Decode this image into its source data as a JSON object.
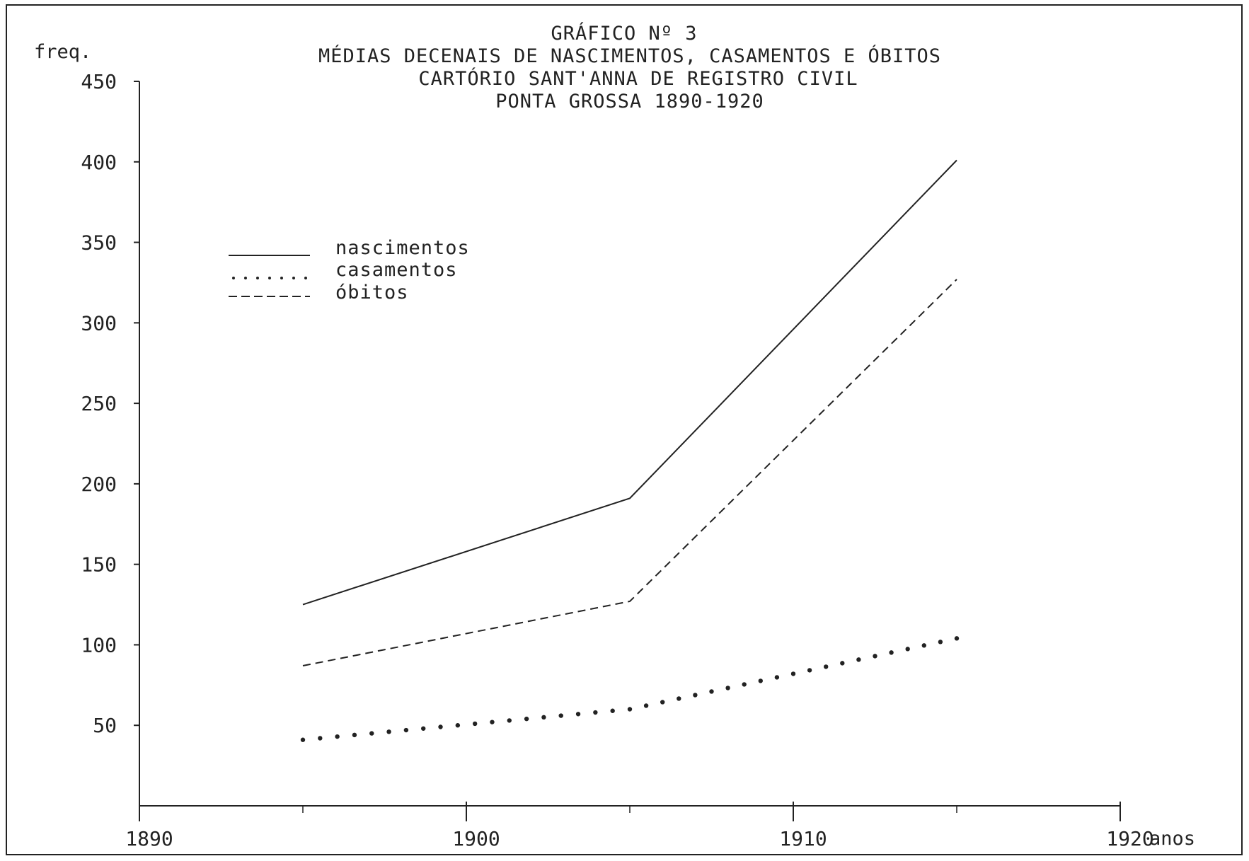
{
  "chart_data": {
    "type": "line",
    "title_lines": [
      "GRÁFICO Nº 3",
      "MÉDIAS DECENAIS DE NASCIMENTOS, CASAMENTOS E ÓBITOS",
      "CARTÓRIO SANT'ANNA DE REGISTRO CIVIL",
      "PONTA GROSSA  1890-1920"
    ],
    "ylabel": "freq.",
    "xlabel": "anos",
    "xlim": [
      1890,
      1920
    ],
    "ylim": [
      0,
      450
    ],
    "x_ticks": [
      "1890",
      "1900",
      "1910",
      "1920"
    ],
    "y_ticks": [
      "50",
      "100",
      "150",
      "200",
      "250",
      "300",
      "350",
      "400",
      "450"
    ],
    "grid": false,
    "legend_position": "upper-left",
    "x": [
      1895,
      1905,
      1915
    ],
    "series": [
      {
        "name": "nascimentos",
        "style": "solid",
        "values": [
          125,
          191,
          401
        ]
      },
      {
        "name": "casamentos",
        "style": "dotted",
        "values": [
          41,
          60,
          104
        ]
      },
      {
        "name": "óbitos",
        "style": "dashed",
        "values": [
          87,
          127,
          327
        ]
      }
    ],
    "line_color": "#222222"
  }
}
